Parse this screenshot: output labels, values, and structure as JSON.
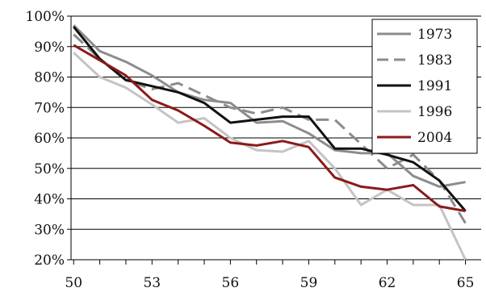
{
  "chart_data": {
    "type": "line",
    "title": "",
    "xlabel": "",
    "ylabel": "",
    "x": [
      50,
      51,
      52,
      53,
      54,
      55,
      56,
      57,
      58,
      59,
      60,
      61,
      62,
      63,
      64,
      65
    ],
    "x_ticks": [
      50,
      53,
      56,
      59,
      62,
      65
    ],
    "x_tick_labels": [
      "50",
      "53",
      "56",
      "59",
      "62",
      "65"
    ],
    "xlim": [
      49.9,
      65.6
    ],
    "ylim": [
      20,
      100
    ],
    "y_ticks": [
      20,
      30,
      40,
      50,
      60,
      70,
      80,
      90,
      100
    ],
    "y_tick_labels": [
      "20%",
      "30%",
      "40%",
      "50%",
      "60%",
      "70%",
      "80%",
      "90%",
      "100%"
    ],
    "grid": "horizontal",
    "legend_position": "top-right",
    "series": [
      {
        "name": "1973",
        "color": "#8c8c8c",
        "dash": "solid",
        "values": [
          97,
          88.5,
          85,
          80.5,
          75,
          72.5,
          71.5,
          65,
          65.5,
          61.5,
          56,
          55,
          55,
          47.5,
          44,
          45.5
        ]
      },
      {
        "name": "1983",
        "color": "#8c8c8c",
        "dash": "dashed",
        "values": [
          94,
          86,
          79,
          76,
          78,
          74,
          70,
          68,
          70,
          66,
          66,
          58,
          50,
          54.5,
          46,
          32
        ]
      },
      {
        "name": "1991",
        "color": "#111111",
        "dash": "solid",
        "values": [
          96.5,
          86,
          79,
          77,
          75,
          71.5,
          65,
          66,
          67,
          67,
          56.5,
          56.5,
          54.5,
          52,
          46,
          36
        ]
      },
      {
        "name": "1996",
        "color": "#c4c4c4",
        "dash": "solid",
        "values": [
          88,
          80,
          76.5,
          71,
          65,
          66.5,
          60,
          56,
          55.5,
          59,
          50,
          38,
          43,
          38,
          38,
          20
        ]
      },
      {
        "name": "2004",
        "color": "#8b1a1a",
        "dash": "solid",
        "values": [
          90.5,
          85.5,
          80.5,
          72.5,
          69,
          64,
          58.5,
          57.5,
          59,
          57,
          47,
          44,
          43,
          44.5,
          37.5,
          36
        ]
      }
    ]
  }
}
